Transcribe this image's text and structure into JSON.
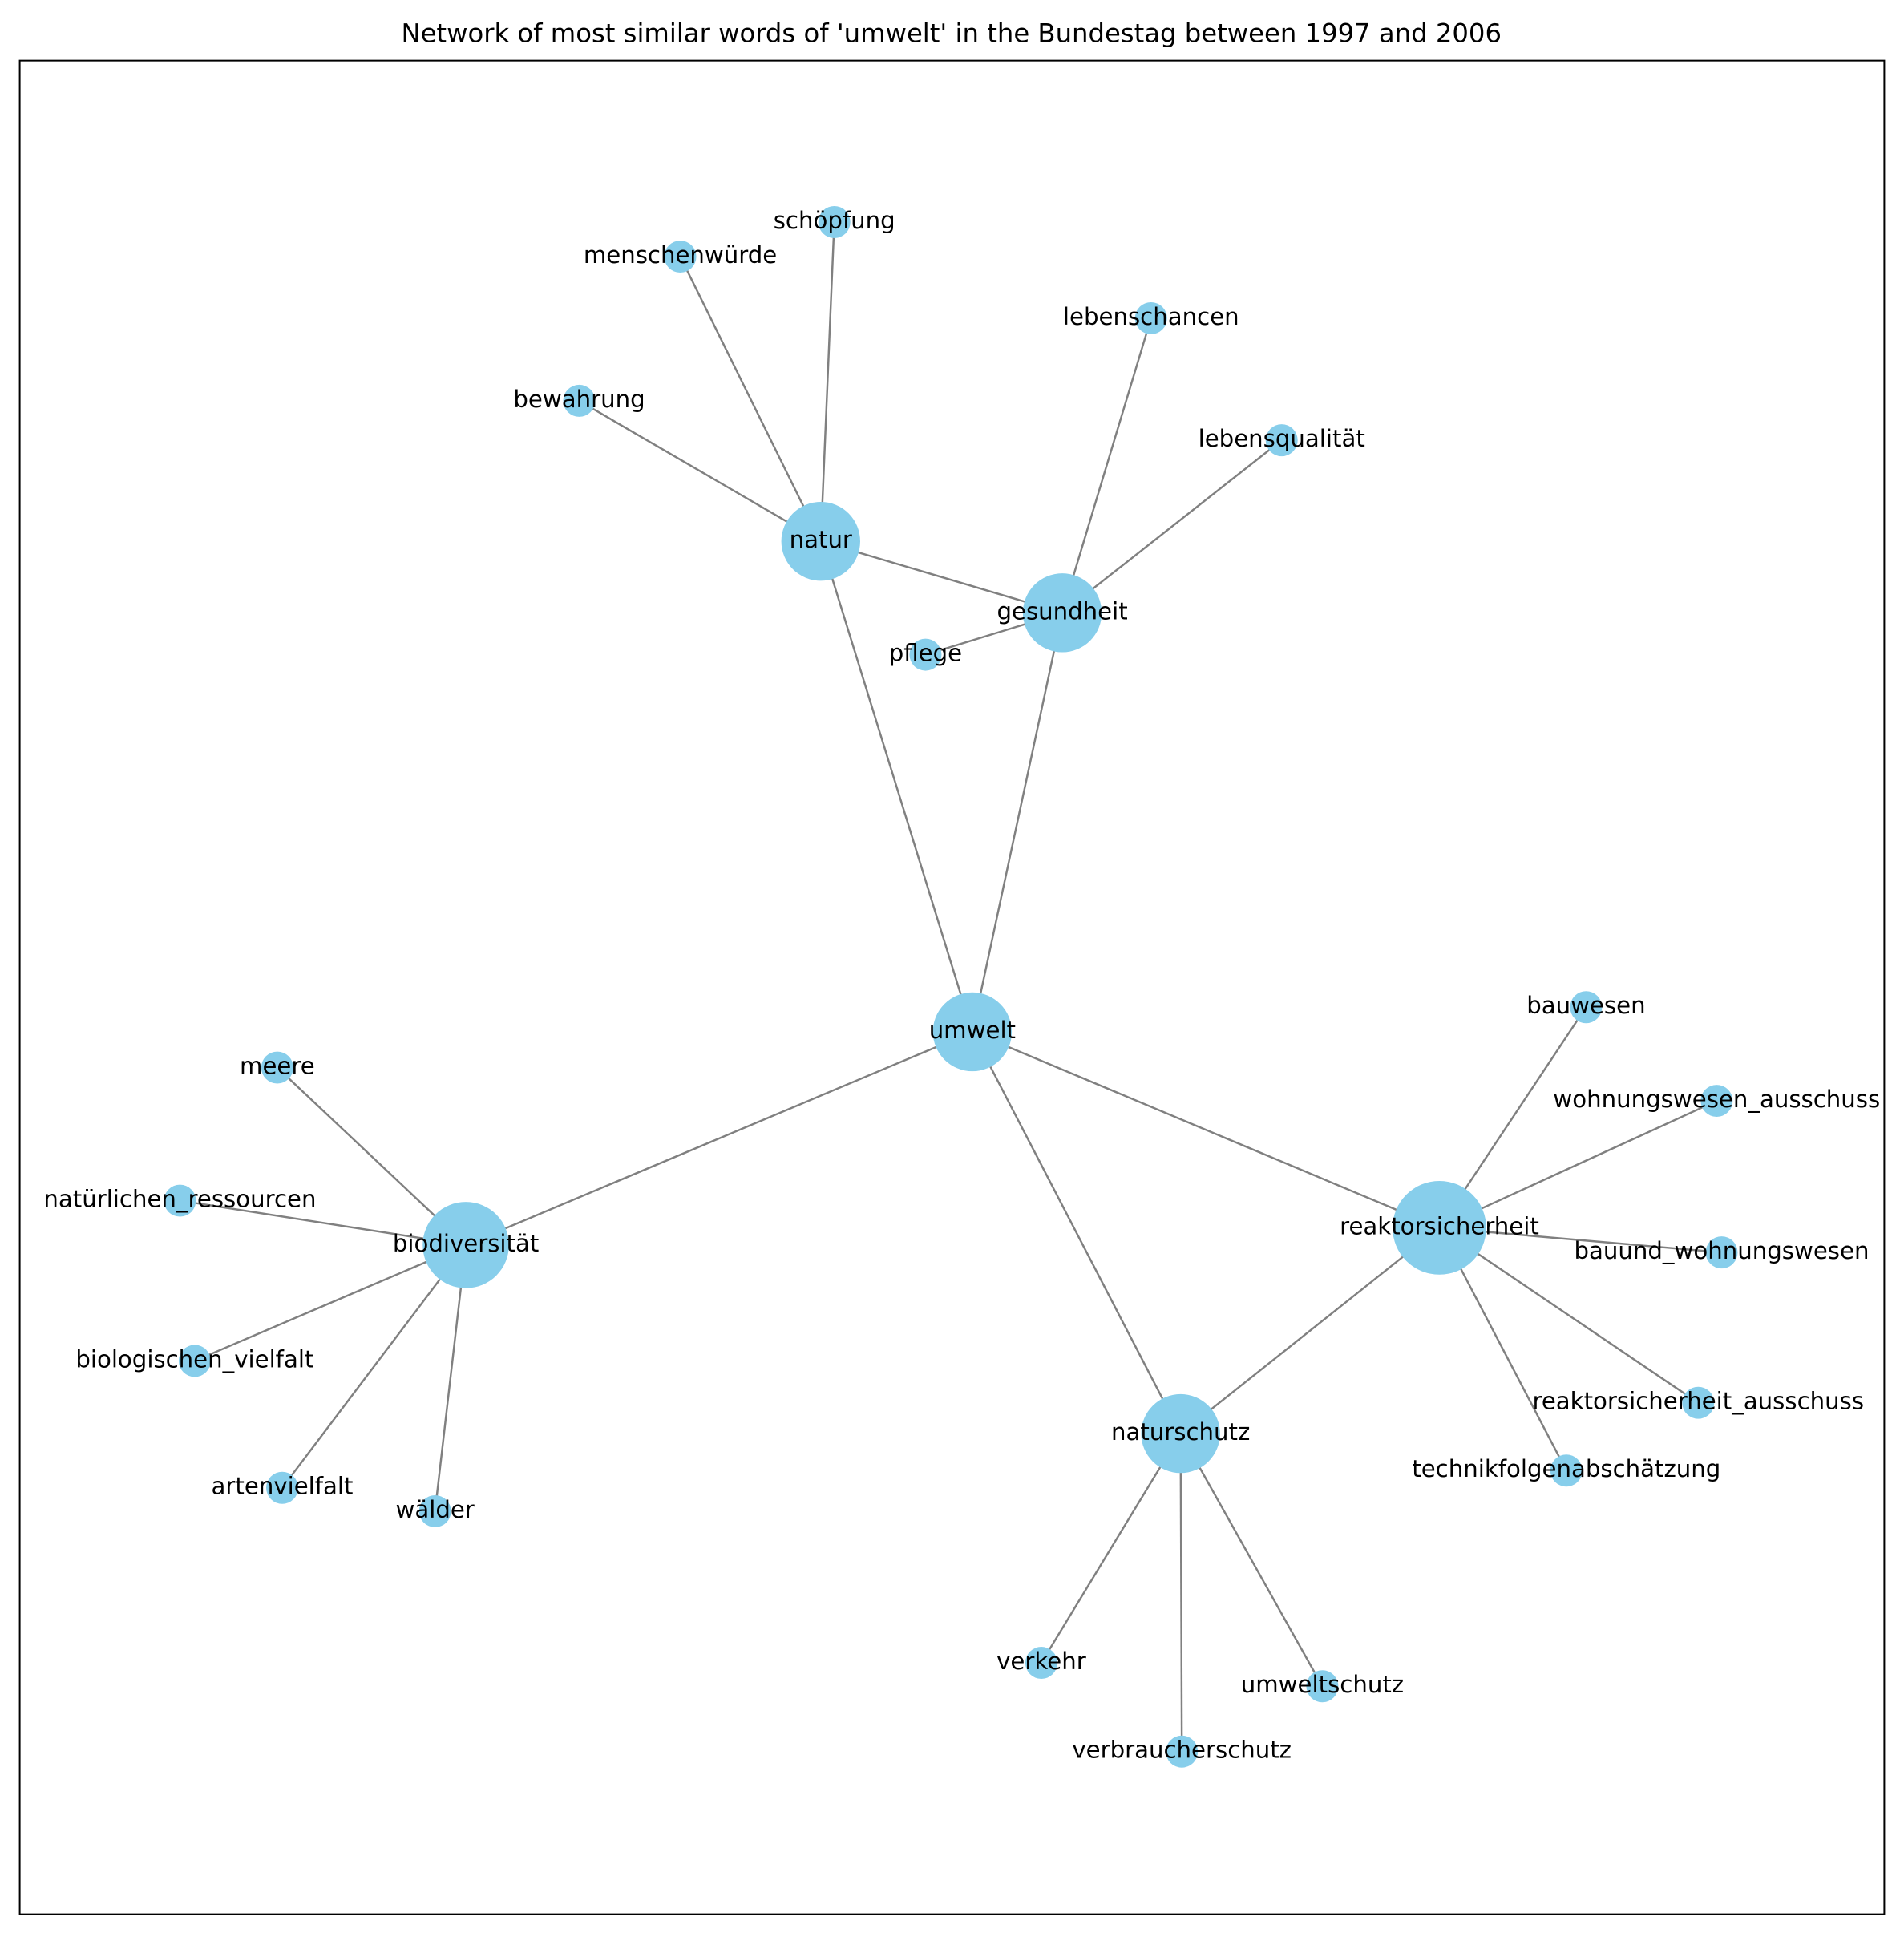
{
  "title": "Network of most similar words of 'umwelt' in the Bundestag between 1997 and 2006",
  "nodes": [
    {
      "label": "umwelt"
    },
    {
      "label": "natur"
    },
    {
      "label": "gesundheit"
    },
    {
      "label": "biodiversität"
    },
    {
      "label": "reaktorsicherheit"
    },
    {
      "label": "naturschutz"
    },
    {
      "label": "schöpfung"
    },
    {
      "label": "menschenwürde"
    },
    {
      "label": "bewahrung"
    },
    {
      "label": "lebenschancen"
    },
    {
      "label": "lebensqualität"
    },
    {
      "label": "pflege"
    },
    {
      "label": "meere"
    },
    {
      "label": "natürlichen_ressourcen"
    },
    {
      "label": "biologischen_vielfalt"
    },
    {
      "label": "artenvielfalt"
    },
    {
      "label": "wälder"
    },
    {
      "label": "bauwesen"
    },
    {
      "label": "wohnungswesen_ausschuss"
    },
    {
      "label": "bauund_wohnungswesen"
    },
    {
      "label": "reaktorsicherheit_ausschuss"
    },
    {
      "label": "technikfolgenabschätzung"
    },
    {
      "label": "verkehr"
    },
    {
      "label": "verbraucherschutz"
    },
    {
      "label": "umweltschutz"
    }
  ],
  "edges": [
    [
      0,
      1
    ],
    [
      0,
      2
    ],
    [
      0,
      3
    ],
    [
      0,
      4
    ],
    [
      0,
      5
    ],
    [
      1,
      2
    ],
    [
      1,
      6
    ],
    [
      1,
      7
    ],
    [
      1,
      8
    ],
    [
      2,
      9
    ],
    [
      2,
      10
    ],
    [
      2,
      11
    ],
    [
      3,
      12
    ],
    [
      3,
      13
    ],
    [
      3,
      14
    ],
    [
      3,
      15
    ],
    [
      3,
      16
    ],
    [
      4,
      17
    ],
    [
      4,
      18
    ],
    [
      4,
      19
    ],
    [
      4,
      20
    ],
    [
      4,
      21
    ],
    [
      4,
      5
    ],
    [
      5,
      22
    ],
    [
      5,
      23
    ],
    [
      5,
      24
    ]
  ]
}
